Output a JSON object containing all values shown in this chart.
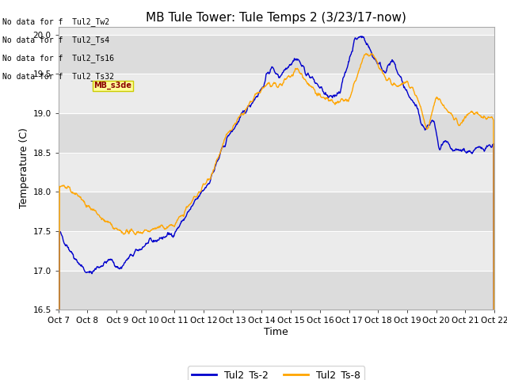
{
  "title": "MB Tule Tower: Tule Temps 2 (3/23/17-now)",
  "xlabel": "Time",
  "ylabel": "Temperature (C)",
  "ylim": [
    16.5,
    20.1
  ],
  "color_blue": "#0000CC",
  "color_orange": "#FFA500",
  "legend_entries": [
    "Tul2_Ts-2",
    "Tul2_Ts-8"
  ],
  "x_tick_labels": [
    "Oct 7",
    "Oct 8",
    " Oct 9",
    "Oct 10",
    "Oct 11",
    "Oct 12",
    "Oct 13",
    "Oct 14",
    "Oct 15",
    "Oct 16",
    "Oct 17",
    "Oct 18",
    "Oct 19",
    "Oct 20",
    "Oct 21",
    "Oct 22"
  ],
  "no_data_lines": [
    "No data for f  Tul2_Tw2",
    "No data for f  Tul2_Ts4",
    "No data for f  Tul2_Ts16",
    "No data for f  Tul2_Ts32"
  ],
  "tooltip_text": "MB_s3de",
  "title_fontsize": 11,
  "axis_fontsize": 9,
  "tick_fontsize": 7.5,
  "band_colors": [
    "#DCDCDC",
    "#EBEBEB"
  ],
  "bg_color": "#F5F5F5"
}
